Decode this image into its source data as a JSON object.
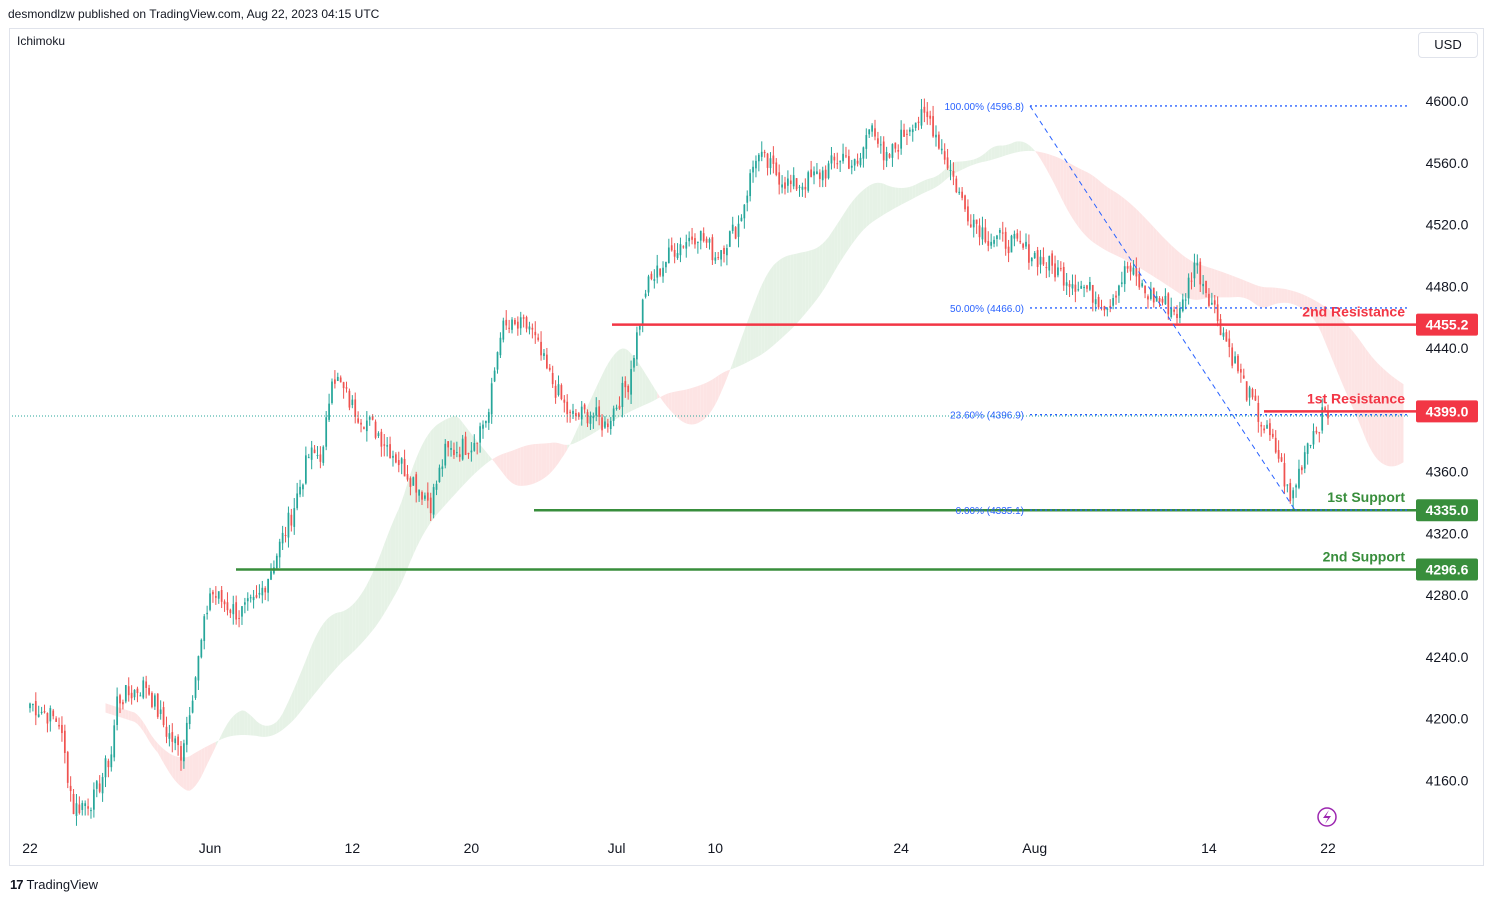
{
  "header": {
    "published_by": "desmondlzw published on TradingView.com, Aug 22, 2023 04:15 UTC"
  },
  "indicator": {
    "name": "Ichimoku"
  },
  "currency_button": {
    "label": "USD"
  },
  "footer": {
    "brand": "TradingView",
    "logo_text": "17"
  },
  "colors": {
    "up": "#26a69a",
    "down": "#ef5350",
    "resistance": "#f23645",
    "support": "#388e3c",
    "fib": "#2962ff",
    "cloud_bull": "#e6f2e6",
    "cloud_bear": "#fde4e4"
  },
  "chart_data": {
    "type": "candlestick",
    "title": "",
    "ylim": [
      4130,
      4610
    ],
    "y_ticks": [
      4160.0,
      4200.0,
      4240.0,
      4280.0,
      4320.0,
      4360.0,
      4440.0,
      4480.0,
      4520.0,
      4560.0,
      4600.0
    ],
    "y_tick_labels": [
      "4160.0",
      "4200.0",
      "4240.0",
      "4280.0",
      "4320.0",
      "4360.0",
      "4440.0",
      "4480.0",
      "4520.0",
      "4560.0",
      "4600.0"
    ],
    "x_labels": [
      "22",
      "Jun",
      "12",
      "20",
      "Jul",
      "10",
      "24",
      "Aug",
      "14",
      "22"
    ],
    "last_price": 4396.0,
    "levels": [
      {
        "name": "2nd Resistance",
        "value": 4455.2,
        "tag": "4455.2",
        "kind": "resistance"
      },
      {
        "name": "1st Resistance",
        "value": 4399.0,
        "tag": "4399.0",
        "kind": "resistance"
      },
      {
        "name": "1st Support",
        "value": 4335.0,
        "tag": "4335.0",
        "kind": "support"
      },
      {
        "name": "2nd Support",
        "value": 4296.6,
        "tag": "4296.6",
        "kind": "support"
      }
    ],
    "fibonacci": [
      {
        "label": "100.00% (4596.8)",
        "value": 4596.8
      },
      {
        "label": "50.00% (4466.0)",
        "value": 4466.0
      },
      {
        "label": "23.60% (4396.9)",
        "value": 4396.9
      },
      {
        "label": "0.00% (4335.1)",
        "value": 4335.1
      }
    ],
    "anchors": [
      [
        0,
        4210
      ],
      [
        10,
        4198
      ],
      [
        15,
        4142
      ],
      [
        22,
        4148
      ],
      [
        28,
        4178
      ],
      [
        30,
        4212
      ],
      [
        40,
        4222
      ],
      [
        47,
        4192
      ],
      [
        52,
        4178
      ],
      [
        58,
        4238
      ],
      [
        62,
        4282
      ],
      [
        72,
        4268
      ],
      [
        78,
        4275
      ],
      [
        84,
        4302
      ],
      [
        90,
        4332
      ],
      [
        96,
        4370
      ],
      [
        101,
        4372
      ],
      [
        104,
        4425
      ],
      [
        111,
        4402
      ],
      [
        120,
        4385
      ],
      [
        129,
        4362
      ],
      [
        138,
        4340
      ],
      [
        143,
        4372
      ],
      [
        152,
        4378
      ],
      [
        158,
        4398
      ],
      [
        162,
        4452
      ],
      [
        172,
        4454
      ],
      [
        178,
        4425
      ],
      [
        186,
        4395
      ],
      [
        193,
        4398
      ],
      [
        198,
        4390
      ],
      [
        206,
        4418
      ],
      [
        212,
        4478
      ],
      [
        222,
        4505
      ],
      [
        230,
        4515
      ],
      [
        236,
        4500
      ],
      [
        244,
        4520
      ],
      [
        250,
        4565
      ],
      [
        256,
        4555
      ],
      [
        262,
        4545
      ],
      [
        268,
        4548
      ],
      [
        274,
        4555
      ],
      [
        280,
        4565
      ],
      [
        285,
        4556
      ],
      [
        290,
        4590
      ],
      [
        294,
        4558
      ],
      [
        298,
        4570
      ],
      [
        304,
        4588
      ],
      [
        310,
        4588
      ],
      [
        316,
        4560
      ],
      [
        322,
        4530
      ],
      [
        330,
        4512
      ],
      [
        338,
        4508
      ],
      [
        346,
        4500
      ],
      [
        352,
        4492
      ],
      [
        358,
        4485
      ],
      [
        364,
        4478
      ],
      [
        371,
        4468
      ],
      [
        378,
        4492
      ],
      [
        384,
        4476
      ],
      [
        390,
        4470
      ],
      [
        396,
        4462
      ],
      [
        401,
        4496
      ],
      [
        407,
        4470
      ],
      [
        413,
        4440
      ],
      [
        419,
        4412
      ],
      [
        424,
        4392
      ],
      [
        430,
        4370
      ],
      [
        434,
        4340
      ],
      [
        440,
        4380
      ],
      [
        446,
        4398
      ]
    ],
    "x_label_positions": [
      0,
      62,
      111,
      152,
      202,
      236,
      300,
      346,
      406,
      447
    ],
    "candle_count": 448
  }
}
